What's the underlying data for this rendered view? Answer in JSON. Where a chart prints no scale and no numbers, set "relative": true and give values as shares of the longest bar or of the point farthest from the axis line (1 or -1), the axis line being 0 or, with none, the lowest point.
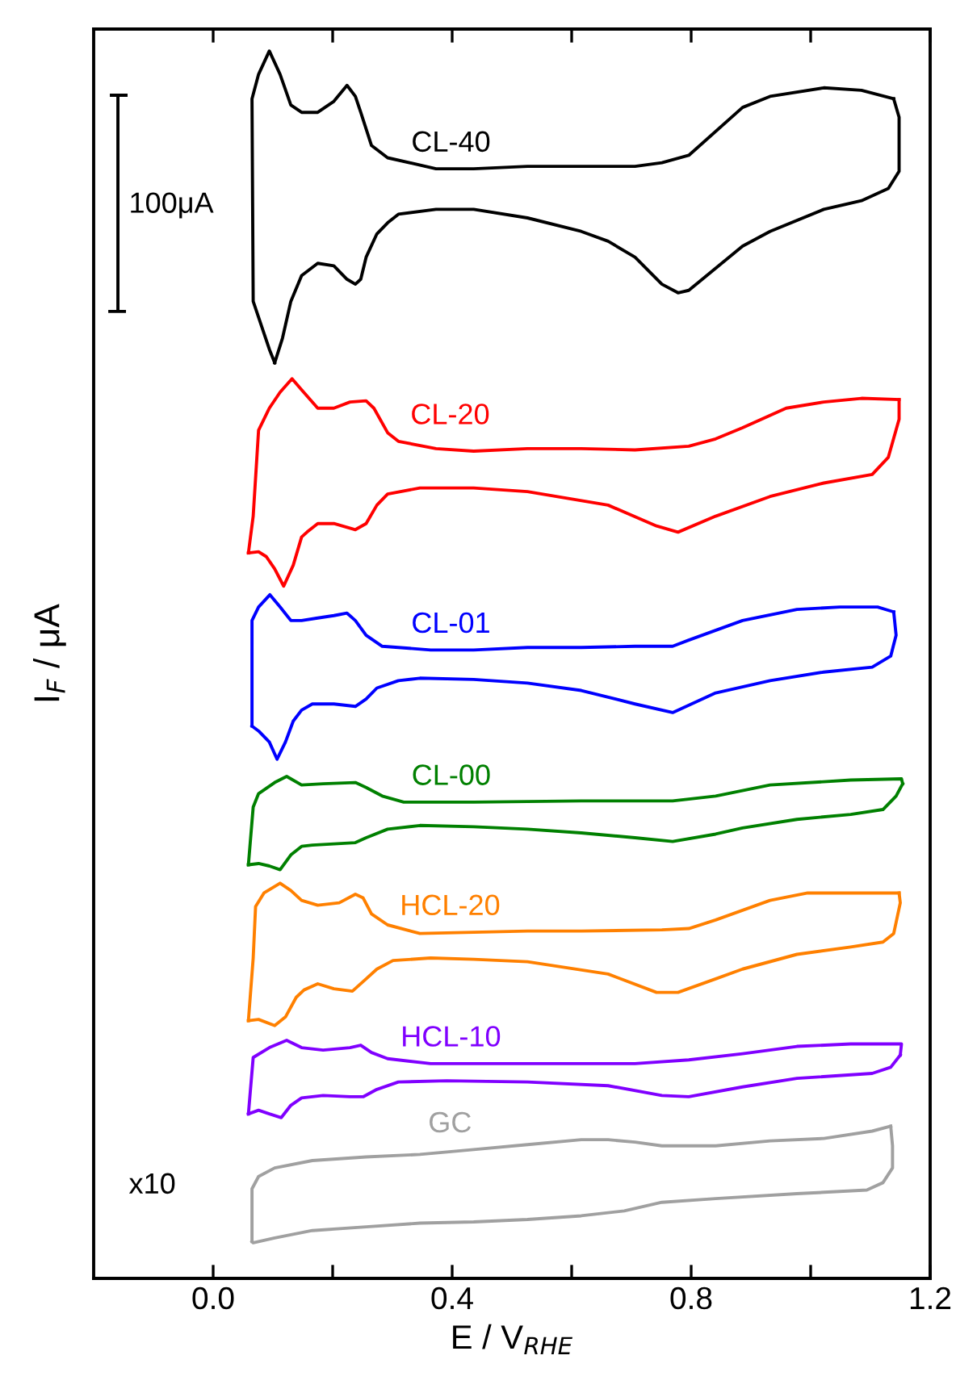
{
  "chart_data": {
    "type": "line",
    "relative": true,
    "xlabel": "E / V$_{RHE}$",
    "ylabel": "I$_{F}$ / μA",
    "tick_labels": "x",
    "line_style": "solid",
    "marker": "none",
    "xlim": [
      -0.2,
      1.2
    ],
    "xticks": [
      {
        "value": 0.0,
        "label": "0.0"
      },
      {
        "value": 0.2,
        "label": null
      },
      {
        "value": 0.4,
        "label": "0.4"
      },
      {
        "value": 0.6,
        "label": null
      },
      {
        "value": 0.8,
        "label": "0.8"
      },
      {
        "value": 1.0,
        "label": null
      },
      {
        "value": 1.2,
        "label": "1.2"
      }
    ],
    "annotations": [
      "100μA",
      "x10"
    ],
    "series": [
      {
        "name": "CL-40",
        "color": "#000000",
        "x": [
          0.103,
          0.094,
          0.076,
          0.067,
          0.065,
          0.076,
          0.094,
          0.112,
          0.13,
          0.148,
          0.175,
          0.202,
          0.224,
          0.238,
          0.247,
          0.265,
          0.292,
          0.373,
          0.436,
          0.526,
          0.616,
          0.706,
          0.751,
          0.796,
          0.886,
          0.932,
          1.022,
          1.085,
          1.139
        ],
        "values": [
          0.746,
          0.757,
          0.783,
          0.796,
          0.961,
          0.981,
          1.0,
          0.981,
          0.956,
          0.95,
          0.95,
          0.959,
          0.972,
          0.963,
          0.95,
          0.923,
          0.913,
          0.904,
          0.904,
          0.906,
          0.906,
          0.906,
          0.909,
          0.915,
          0.954,
          0.963,
          0.97,
          0.968,
          0.961
        ]
      },
      {
        "color": "#000000",
        "x": [
          1.139,
          1.148,
          1.148,
          1.13,
          1.085,
          1.022,
          0.932,
          0.886,
          0.796,
          0.778,
          0.751,
          0.706,
          0.661,
          0.616,
          0.526,
          0.436,
          0.373,
          0.31,
          0.292,
          0.274,
          0.256,
          0.247,
          0.238,
          0.224,
          0.202,
          0.175,
          0.148,
          0.13,
          0.116,
          0.103
        ],
        "values": [
          0.961,
          0.946,
          0.902,
          0.888,
          0.878,
          0.871,
          0.853,
          0.841,
          0.805,
          0.803,
          0.81,
          0.832,
          0.845,
          0.853,
          0.864,
          0.871,
          0.871,
          0.867,
          0.86,
          0.851,
          0.832,
          0.814,
          0.81,
          0.814,
          0.825,
          0.827,
          0.817,
          0.796,
          0.766,
          0.746
        ]
      },
      {
        "name": "CL-20",
        "color": "#ff0000",
        "x": [
          0.059,
          0.067,
          0.076,
          0.094,
          0.112,
          0.132,
          0.148,
          0.175,
          0.202,
          0.229,
          0.256,
          0.269,
          0.292,
          0.31,
          0.373,
          0.436,
          0.526,
          0.616,
          0.706,
          0.796,
          0.841,
          0.886,
          0.959,
          1.022,
          1.085,
          1.148
        ],
        "values": [
          0.591,
          0.621,
          0.691,
          0.709,
          0.722,
          0.733,
          0.724,
          0.709,
          0.709,
          0.714,
          0.715,
          0.709,
          0.689,
          0.682,
          0.676,
          0.674,
          0.676,
          0.676,
          0.675,
          0.678,
          0.684,
          0.693,
          0.709,
          0.714,
          0.717,
          0.716
        ]
      },
      {
        "color": "#ff0000",
        "x": [
          1.148,
          1.148,
          1.13,
          1.103,
          1.022,
          0.932,
          0.841,
          0.778,
          0.742,
          0.661,
          0.526,
          0.436,
          0.346,
          0.292,
          0.274,
          0.256,
          0.238,
          0.202,
          0.175,
          0.157,
          0.148,
          0.134,
          0.118,
          0.103,
          0.089,
          0.076,
          0.059
        ],
        "values": [
          0.716,
          0.7,
          0.669,
          0.655,
          0.648,
          0.637,
          0.621,
          0.608,
          0.613,
          0.63,
          0.641,
          0.644,
          0.644,
          0.639,
          0.63,
          0.615,
          0.61,
          0.615,
          0.615,
          0.608,
          0.604,
          0.581,
          0.564,
          0.578,
          0.588,
          0.592,
          0.591
        ]
      },
      {
        "name": "CL-01",
        "color": "#0000ff",
        "x": [
          0.065,
          0.065,
          0.076,
          0.095,
          0.112,
          0.13,
          0.148,
          0.175,
          0.202,
          0.224,
          0.238,
          0.256,
          0.283,
          0.364,
          0.436,
          0.526,
          0.616,
          0.706,
          0.769,
          0.796,
          0.886,
          0.977,
          1.049,
          1.112,
          1.139
        ],
        "values": [
          0.45,
          0.536,
          0.547,
          0.557,
          0.547,
          0.536,
          0.536,
          0.538,
          0.54,
          0.542,
          0.536,
          0.524,
          0.515,
          0.512,
          0.512,
          0.514,
          0.514,
          0.515,
          0.515,
          0.52,
          0.536,
          0.545,
          0.547,
          0.547,
          0.543
        ]
      },
      {
        "color": "#0000ff",
        "x": [
          1.139,
          1.143,
          1.134,
          1.103,
          1.022,
          0.932,
          0.841,
          0.769,
          0.706,
          0.616,
          0.526,
          0.436,
          0.346,
          0.31,
          0.274,
          0.256,
          0.238,
          0.202,
          0.166,
          0.148,
          0.134,
          0.121,
          0.107,
          0.094,
          0.076,
          0.065
        ],
        "values": [
          0.543,
          0.524,
          0.507,
          0.498,
          0.494,
          0.487,
          0.477,
          0.461,
          0.468,
          0.479,
          0.485,
          0.488,
          0.489,
          0.487,
          0.481,
          0.472,
          0.466,
          0.468,
          0.468,
          0.463,
          0.454,
          0.437,
          0.423,
          0.437,
          0.446,
          0.45
        ]
      },
      {
        "name": "CL-00",
        "color": "#008000",
        "x": [
          0.059,
          0.067,
          0.076,
          0.103,
          0.123,
          0.148,
          0.184,
          0.238,
          0.256,
          0.283,
          0.319,
          0.436,
          0.616,
          0.769,
          0.841,
          0.932,
          1.067,
          1.152,
          1.154
        ],
        "values": [
          0.337,
          0.384,
          0.395,
          0.404,
          0.409,
          0.402,
          0.403,
          0.404,
          0.4,
          0.393,
          0.388,
          0.388,
          0.389,
          0.389,
          0.393,
          0.402,
          0.406,
          0.407,
          0.403
        ]
      },
      {
        "color": "#008000",
        "x": [
          1.154,
          1.143,
          1.121,
          1.067,
          0.977,
          0.886,
          0.841,
          0.769,
          0.706,
          0.616,
          0.526,
          0.436,
          0.346,
          0.292,
          0.256,
          0.238,
          0.202,
          0.166,
          0.148,
          0.13,
          0.112,
          0.094,
          0.076,
          0.059
        ],
        "values": [
          0.403,
          0.393,
          0.382,
          0.378,
          0.374,
          0.367,
          0.362,
          0.356,
          0.359,
          0.363,
          0.366,
          0.368,
          0.369,
          0.366,
          0.359,
          0.355,
          0.354,
          0.353,
          0.352,
          0.345,
          0.333,
          0.336,
          0.338,
          0.337
        ]
      },
      {
        "name": "HCL-20",
        "color": "#ff8000",
        "x": [
          0.059,
          0.067,
          0.071,
          0.085,
          0.112,
          0.13,
          0.148,
          0.175,
          0.211,
          0.238,
          0.251,
          0.265,
          0.292,
          0.346,
          0.436,
          0.526,
          0.616,
          0.751,
          0.796,
          0.841,
          0.932,
          0.995,
          1.148
        ],
        "values": [
          0.21,
          0.261,
          0.303,
          0.314,
          0.322,
          0.316,
          0.308,
          0.304,
          0.306,
          0.313,
          0.31,
          0.297,
          0.288,
          0.281,
          0.282,
          0.283,
          0.283,
          0.284,
          0.285,
          0.292,
          0.308,
          0.314,
          0.314
        ]
      },
      {
        "color": "#ff8000",
        "x": [
          1.148,
          1.15,
          1.139,
          1.121,
          1.067,
          0.977,
          0.886,
          0.841,
          0.778,
          0.742,
          0.661,
          0.526,
          0.436,
          0.364,
          0.301,
          0.274,
          0.256,
          0.233,
          0.202,
          0.175,
          0.152,
          0.139,
          0.121,
          0.103,
          0.076,
          0.059
        ],
        "values": [
          0.314,
          0.306,
          0.281,
          0.274,
          0.27,
          0.264,
          0.252,
          0.244,
          0.233,
          0.233,
          0.248,
          0.258,
          0.26,
          0.261,
          0.259,
          0.252,
          0.244,
          0.234,
          0.236,
          0.24,
          0.235,
          0.229,
          0.213,
          0.206,
          0.211,
          0.21
        ]
      },
      {
        "name": "HCL-10",
        "color": "#8000ff",
        "x": [
          0.059,
          0.067,
          0.094,
          0.123,
          0.148,
          0.184,
          0.229,
          0.247,
          0.265,
          0.292,
          0.364,
          0.526,
          0.706,
          0.796,
          0.886,
          0.977,
          1.067,
          1.152,
          1.15
        ],
        "values": [
          0.134,
          0.18,
          0.188,
          0.194,
          0.188,
          0.186,
          0.188,
          0.19,
          0.184,
          0.179,
          0.175,
          0.175,
          0.175,
          0.178,
          0.183,
          0.189,
          0.191,
          0.191,
          0.182
        ]
      },
      {
        "color": "#8000ff",
        "x": [
          1.15,
          1.134,
          1.103,
          0.977,
          0.886,
          0.796,
          0.751,
          0.661,
          0.526,
          0.391,
          0.31,
          0.274,
          0.251,
          0.229,
          0.184,
          0.148,
          0.13,
          0.114,
          0.094,
          0.076,
          0.059
        ],
        "values": [
          0.182,
          0.172,
          0.167,
          0.163,
          0.156,
          0.148,
          0.149,
          0.157,
          0.16,
          0.161,
          0.16,
          0.154,
          0.148,
          0.148,
          0.149,
          0.147,
          0.141,
          0.131,
          0.134,
          0.137,
          0.134
        ]
      },
      {
        "name": "GC",
        "color": "#a0a0a0",
        "x": [
          0.065,
          0.065,
          0.076,
          0.103,
          0.166,
          0.256,
          0.346,
          0.436,
          0.526,
          0.616,
          0.661,
          0.706,
          0.751,
          0.841,
          0.932,
          1.022,
          1.103,
          1.134
        ],
        "values": [
          0.03,
          0.073,
          0.083,
          0.09,
          0.096,
          0.099,
          0.101,
          0.105,
          0.109,
          0.113,
          0.113,
          0.111,
          0.108,
          0.108,
          0.112,
          0.114,
          0.12,
          0.124
        ]
      },
      {
        "color": "#a0a0a0",
        "x": [
          1.134,
          1.137,
          1.137,
          1.121,
          1.094,
          0.977,
          0.841,
          0.751,
          0.688,
          0.616,
          0.526,
          0.436,
          0.346,
          0.256,
          0.166,
          0.103,
          0.067,
          0.065
        ],
        "values": [
          0.124,
          0.108,
          0.09,
          0.078,
          0.072,
          0.069,
          0.065,
          0.062,
          0.055,
          0.051,
          0.048,
          0.046,
          0.045,
          0.042,
          0.039,
          0.033,
          0.029,
          0.03
        ]
      }
    ]
  }
}
